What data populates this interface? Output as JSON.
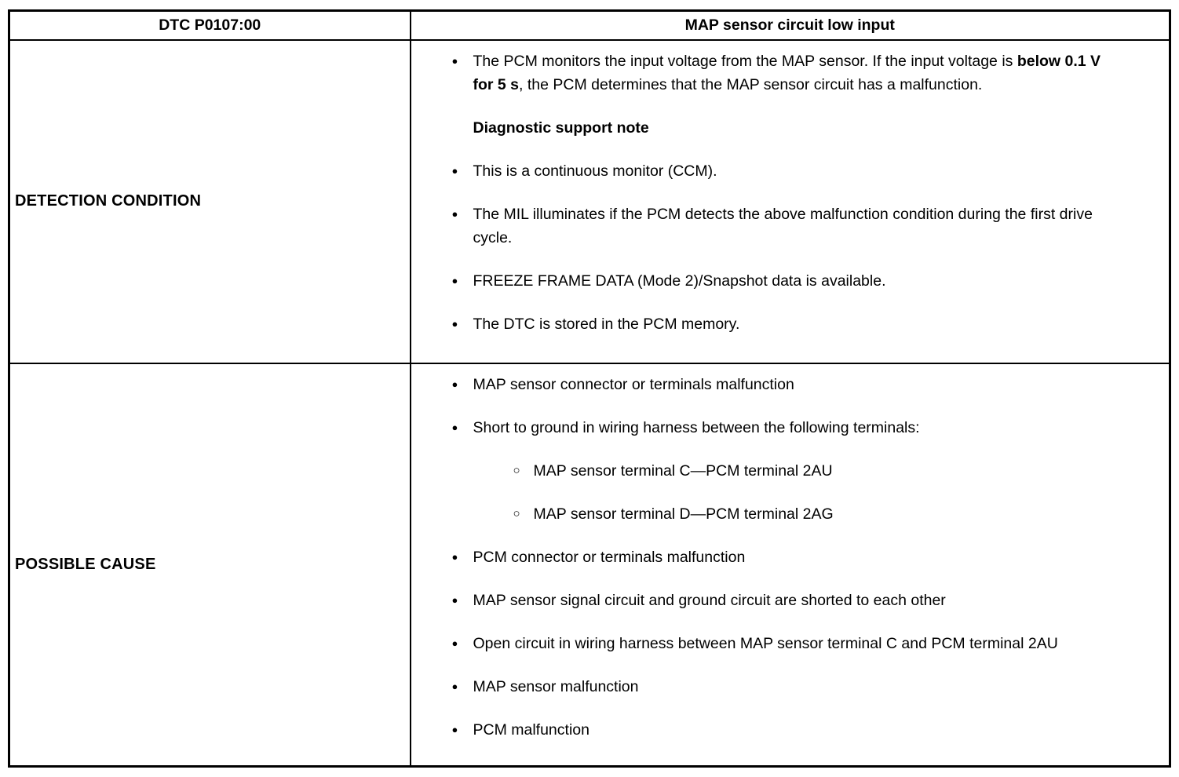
{
  "icons": {
    "bullet": "●",
    "sub_bullet": "○"
  },
  "header": {
    "dtc": "DTC P0107:00",
    "title": "MAP sensor circuit low input"
  },
  "detection": {
    "label": "DETECTION CONDITION",
    "bullet1": {
      "pre": "The PCM monitors the input voltage from the MAP sensor. If the input voltage is ",
      "bold": "below 0.1 V for 5 s",
      "post": ", the PCM determines that the MAP sensor circuit has a malfunction."
    },
    "note_heading": "Diagnostic support note",
    "bullets": [
      "This is a continuous monitor (CCM).",
      "The MIL illuminates if the PCM detects the above malfunction condition during the first drive cycle.",
      "FREEZE FRAME DATA (Mode 2)/Snapshot data is available.",
      "The DTC is stored in the PCM memory."
    ]
  },
  "possible_cause": {
    "label": "POSSIBLE CAUSE",
    "bullets_top": [
      "MAP sensor connector or terminals malfunction",
      "Short to ground in wiring harness between the following terminals:"
    ],
    "sub_bullets": [
      "MAP sensor terminal C—PCM terminal 2AU",
      "MAP sensor terminal D—PCM terminal 2AG"
    ],
    "bullets_bottom": [
      "PCM connector or terminals malfunction",
      "MAP sensor signal circuit and ground circuit are shorted to each other",
      "Open circuit in wiring harness between MAP sensor terminal C and PCM terminal 2AU",
      "MAP sensor malfunction",
      "PCM malfunction"
    ]
  }
}
